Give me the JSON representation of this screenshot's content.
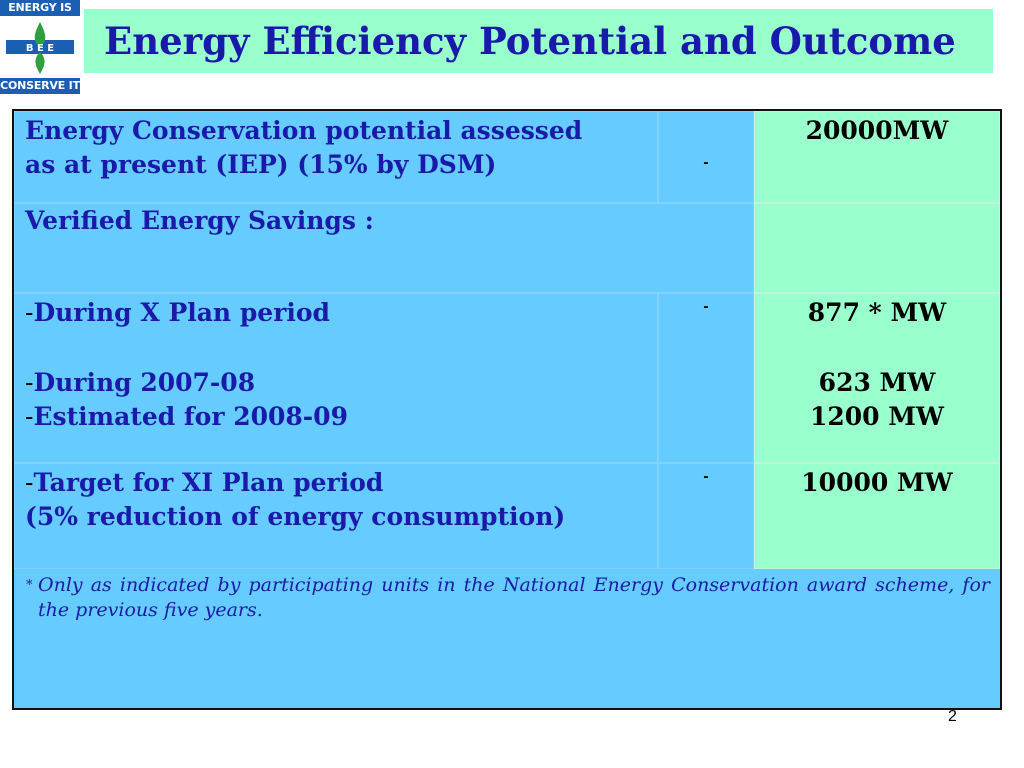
{
  "logo": {
    "top_text": "ENERGY IS LIFE",
    "center_text": "B E E",
    "bottom_text": "CONSERVE IT"
  },
  "title": "Energy Efficiency Potential and Outcome",
  "table": {
    "row1": {
      "label_line1": "Energy Conservation potential assessed",
      "label_line2": "as at present (IEP) (15% by DSM)",
      "dash": "-",
      "value": "20000MW"
    },
    "row2": {
      "label": "Verified Energy Savings :"
    },
    "row3": {
      "prefix": "-",
      "label_line1": "During X Plan period",
      "label_line2": "During 2007-08",
      "label_line3": "Estimated for 2008-09",
      "dash": "-",
      "value_line1": "877 * MW",
      "value_line2": "623 MW",
      "value_line3": "1200 MW"
    },
    "row4": {
      "prefix": "-",
      "label_line1": "Target for XI Plan period",
      "label_line2": "(5% reduction of energy consumption)",
      "dash": "-",
      "value": "10000 MW"
    },
    "footnote": {
      "star": "*",
      "text": "Only as indicated by participating units in the National Energy Conservation award scheme, for the previous five years."
    }
  },
  "page_number": "2",
  "colors": {
    "title_bg": "#99ffcc",
    "table_bg": "#66ccff",
    "value_col_bg": "#99ffcc",
    "text_blue": "#1a1aaa",
    "logo_blue": "#1a5fb4",
    "logo_green": "#2e9e3e"
  }
}
